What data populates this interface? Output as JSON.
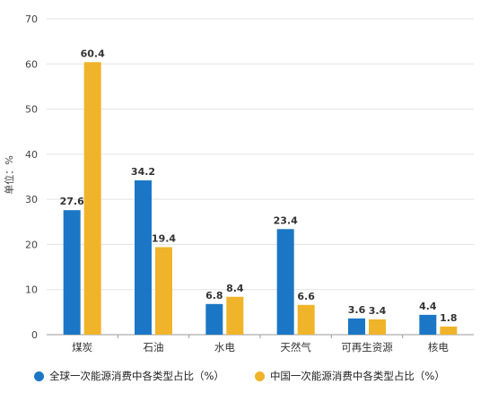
{
  "chart_data": {
    "type": "bar",
    "categories": [
      "煤炭",
      "石油",
      "水电",
      "天然气",
      "可再生资源",
      "核电"
    ],
    "series": [
      {
        "name": "全球一次能源消费中各类型占比（%）",
        "values": [
          27.6,
          34.2,
          6.8,
          23.4,
          3.6,
          4.4
        ],
        "color": "#1b77c5"
      },
      {
        "name": "中国一次能源消费中各类型占比（%）",
        "values": [
          60.4,
          19.4,
          8.4,
          6.6,
          3.4,
          1.8
        ],
        "color": "#f0b42a"
      }
    ],
    "ylabel": "单位：%",
    "xlabel": "",
    "ylim": [
      0,
      70
    ],
    "yticks": [
      0,
      10,
      20,
      30,
      40,
      50,
      60,
      70
    ],
    "grid": true,
    "legend_position": "bottom-left"
  }
}
